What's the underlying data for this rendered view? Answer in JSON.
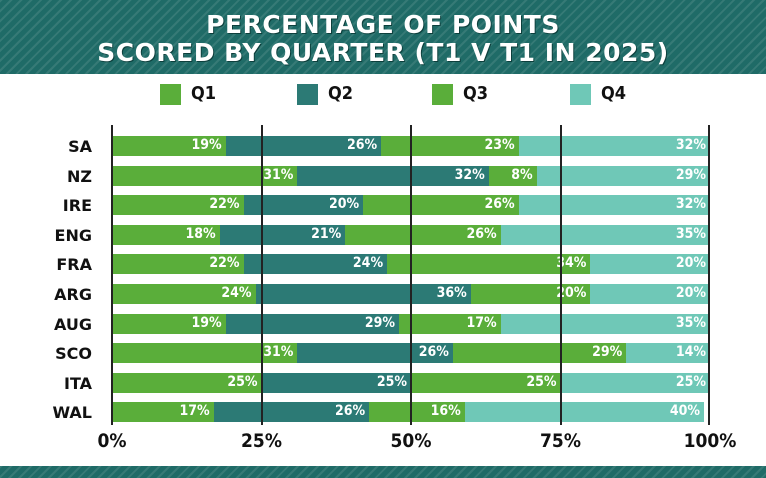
{
  "colors": {
    "q1": "#5aae3a",
    "q2": "#2c7a75",
    "q3": "#5aae3a",
    "q4": "#6fc8b7",
    "header_bg": "#1f6b67"
  },
  "chart_data": {
    "type": "bar",
    "orientation": "horizontal",
    "stacked": true,
    "title_lines": [
      "PERCENTAGE OF POINTS",
      "SCORED BY QUARTER (T1 V T1 IN 2025)"
    ],
    "categories": [
      "SA",
      "NZ",
      "IRE",
      "ENG",
      "FRA",
      "ARG",
      "AUG",
      "SCO",
      "ITA",
      "WAL"
    ],
    "series": [
      {
        "name": "Q1",
        "values": [
          19,
          31,
          22,
          18,
          22,
          24,
          19,
          31,
          25,
          17
        ],
        "labels": [
          "19%",
          "31%",
          "22%",
          "18%",
          "22%",
          "24%",
          "19%",
          "31%",
          "25%",
          "17%"
        ]
      },
      {
        "name": "Q2",
        "values": [
          26,
          32,
          20,
          21,
          24,
          36,
          29,
          26,
          25,
          26
        ],
        "labels": [
          "26%",
          "32%",
          "20%",
          "21%",
          "24%",
          "36%",
          "29%",
          "26%",
          "25%",
          "26%"
        ]
      },
      {
        "name": "Q3",
        "values": [
          23,
          8,
          26,
          26,
          34,
          20,
          17,
          29,
          25,
          16
        ],
        "labels": [
          "23%",
          "8%",
          "26%",
          "26%",
          "34%",
          "20%",
          "17%",
          "29%",
          "25%",
          "16%"
        ]
      },
      {
        "name": "Q4",
        "values": [
          32,
          29,
          32,
          35,
          20,
          20,
          35,
          14,
          25,
          40
        ],
        "labels": [
          "32%",
          "29%",
          "32%",
          "35%",
          "20%",
          "20%",
          "35%",
          "14%",
          "25%",
          "40%"
        ]
      }
    ],
    "xlim": [
      0,
      100
    ],
    "xticks": [
      0,
      25,
      50,
      75,
      100
    ],
    "xtick_labels": [
      "0%",
      "25%",
      "50%",
      "75%",
      "100%"
    ],
    "legend_position": "top",
    "grid": true
  }
}
